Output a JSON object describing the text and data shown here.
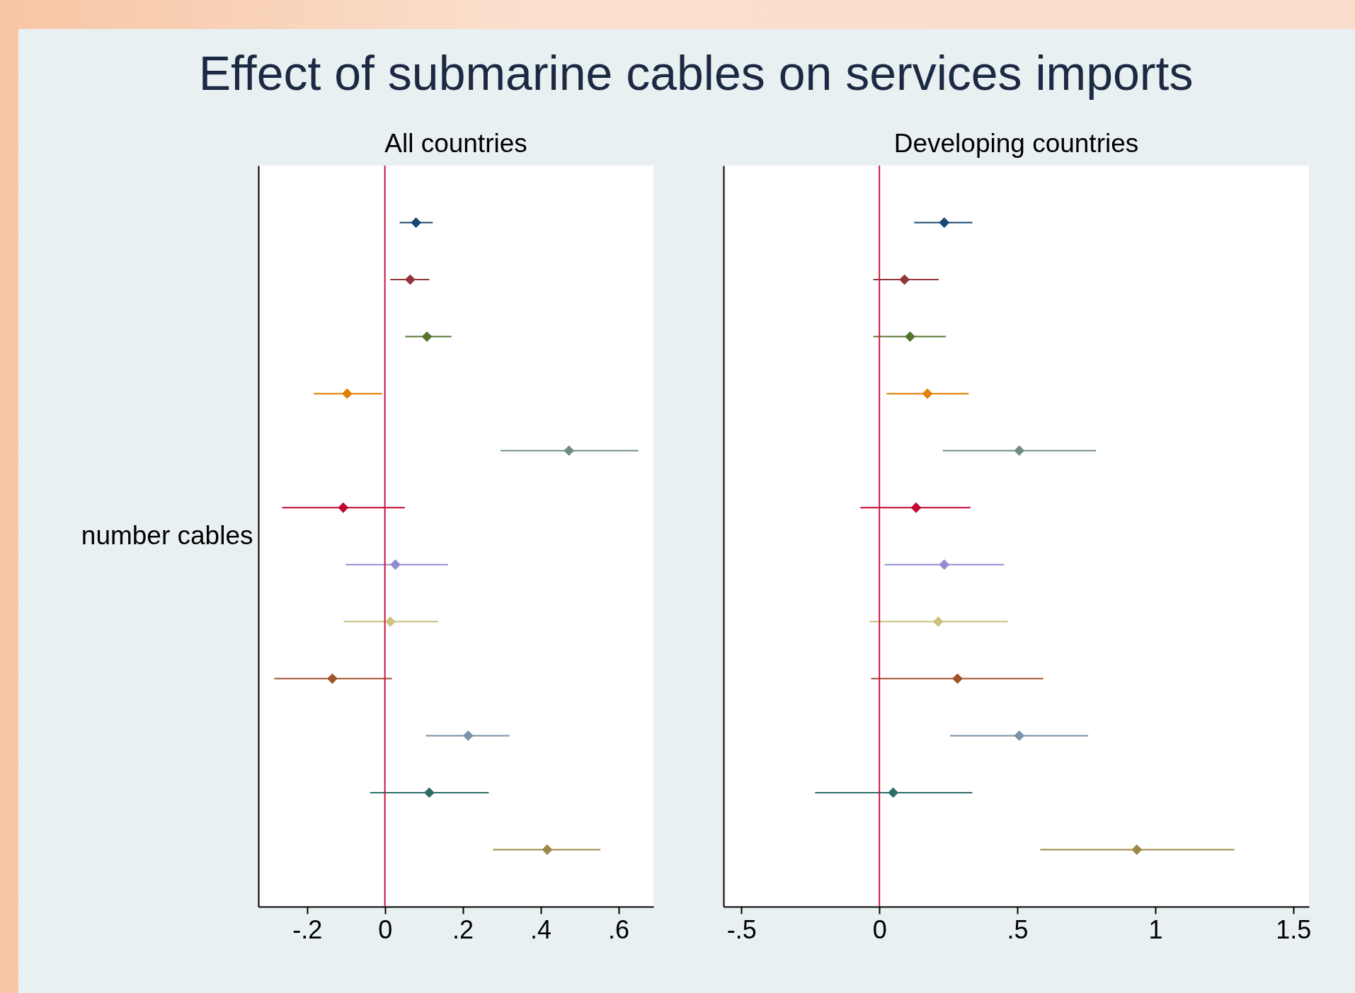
{
  "chart_data": [
    {
      "type": "scatter",
      "title": "Effect of submarine cables on services imports",
      "subtitle": "All countries",
      "ylabel": "number cables",
      "orientation": "horizontal",
      "marker": "diamond",
      "categories": [
        null,
        null,
        null,
        null,
        null,
        null,
        null,
        null,
        null,
        null,
        null,
        null
      ],
      "values": [
        0.08,
        0.065,
        0.108,
        -0.097,
        0.473,
        -0.107,
        0.027,
        0.014,
        -0.135,
        0.214,
        0.114,
        0.417
      ],
      "errors": [
        [
          0.038,
          0.123
        ],
        [
          0.014,
          0.114
        ],
        [
          0.052,
          0.171
        ],
        [
          -0.183,
          -0.007
        ],
        [
          0.297,
          0.651
        ],
        [
          -0.264,
          0.051
        ],
        [
          -0.101,
          0.162
        ],
        [
          -0.106,
          0.137
        ],
        [
          -0.284,
          0.018
        ],
        [
          0.105,
          0.32
        ],
        [
          -0.038,
          0.267
        ],
        [
          0.278,
          0.554
        ]
      ],
      "colors": [
        "#1a476f",
        "#90353b",
        "#55752f",
        "#e37e00",
        "#6e8e84",
        "#c10534",
        "#938dd2",
        "#cac27e",
        "#a0522d",
        "#7b92a8",
        "#2d6d66",
        "#9c8847"
      ],
      "xlim": [
        -0.325,
        0.69
      ],
      "xticks": [
        {
          "value": -0.2,
          "label": "-.2"
        },
        0,
        {
          "value": 0.2,
          "label": ".2"
        },
        {
          "value": 0.4,
          "label": ".4"
        },
        {
          "value": 0.6,
          "label": ".6"
        }
      ],
      "ref_lines": [
        {
          "axis": "x",
          "value": 0,
          "color": "#d2103f"
        }
      ]
    },
    {
      "type": "scatter",
      "subtitle": "Developing countries",
      "orientation": "horizontal",
      "marker": "diamond",
      "categories": [
        null,
        null,
        null,
        null,
        null,
        null,
        null,
        null,
        null,
        null,
        null,
        null
      ],
      "values": [
        0.235,
        0.091,
        0.111,
        0.174,
        0.507,
        0.133,
        0.235,
        0.213,
        0.283,
        0.507,
        0.05,
        0.933
      ],
      "errors": [
        [
          0.126,
          0.337
        ],
        [
          -0.022,
          0.215
        ],
        [
          -0.022,
          0.241
        ],
        [
          0.026,
          0.324
        ],
        [
          0.23,
          0.785
        ],
        [
          -0.069,
          0.33
        ],
        [
          0.019,
          0.452
        ],
        [
          -0.035,
          0.465
        ],
        [
          -0.03,
          0.594
        ],
        [
          0.256,
          0.757
        ],
        [
          -0.233,
          0.337
        ],
        [
          0.583,
          1.287
        ]
      ],
      "colors": [
        "#1a476f",
        "#90353b",
        "#55752f",
        "#e37e00",
        "#6e8e84",
        "#c10534",
        "#938dd2",
        "#cac27e",
        "#a0522d",
        "#7b92a8",
        "#2d6d66",
        "#9c8847"
      ],
      "xlim": [
        -0.565,
        1.557
      ],
      "xticks": [
        {
          "value": -0.5,
          "label": "-.5"
        },
        0,
        {
          "value": 0.5,
          "label": ".5"
        },
        1,
        1.5
      ],
      "ref_lines": [
        {
          "axis": "x",
          "value": 0,
          "color": "#d2103f"
        }
      ]
    }
  ]
}
